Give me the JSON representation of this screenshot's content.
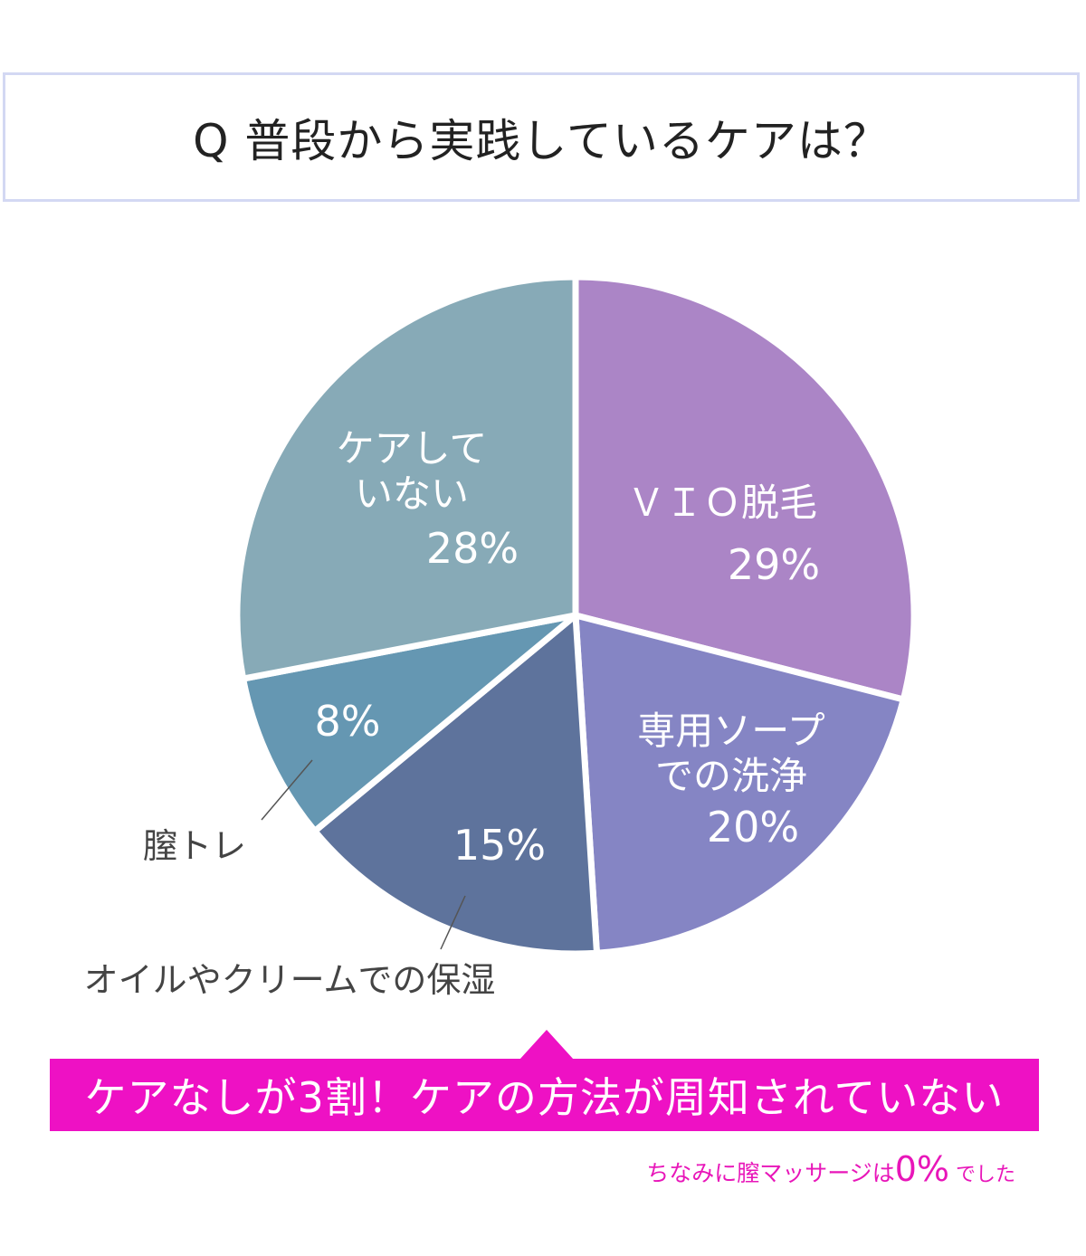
{
  "title": "Q 普段から実践しているケアは？",
  "chart_data": {
    "type": "pie",
    "categories": [
      "VIO脱毛",
      "専用ソープでの洗浄",
      "オイルやクリームでの保湿",
      "膣トレ",
      "ケアしていない"
    ],
    "values": [
      29,
      20,
      15,
      8,
      28
    ],
    "labels": [
      {
        "lines": [
          "ＶＩＯ脱毛"
        ],
        "value": "29%"
      },
      {
        "lines": [
          "専用ソープ",
          "での洗浄"
        ],
        "value": "20%"
      },
      {
        "lines": [],
        "value": "15%",
        "callout": "オイルやクリームでの保湿"
      },
      {
        "lines": [],
        "value": "8%",
        "callout": "膣トレ"
      },
      {
        "lines": [
          "ケアして",
          "いない"
        ],
        "value": "28%"
      }
    ],
    "colors": [
      "#ab85c6",
      "#8585c4",
      "#5e739c",
      "#6597b2",
      "#87aab7"
    ]
  },
  "banner": "ケアなしが3割！ケアの方法が周知されていない",
  "footnote": {
    "prefix": "ちなみに膣マッサージは",
    "value": "0%",
    "suffix": " でした"
  }
}
